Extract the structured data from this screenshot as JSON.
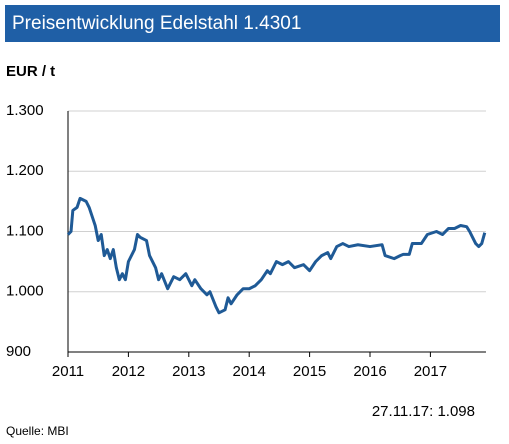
{
  "chart_data": {
    "type": "line",
    "title": "Preisentwicklung Edelstahl 1.4301",
    "y_label": "EUR / t",
    "annotation": "27.11.17:  1.098",
    "source": "Quelle: MBI",
    "xlim": [
      2011,
      2017.92
    ],
    "xticks": [
      2011,
      2012,
      2013,
      2014,
      2015,
      2016,
      2017
    ],
    "ylim": [
      900,
      1300
    ],
    "yticks": [
      900,
      {
        "value": 1000,
        "label": "1.000"
      },
      {
        "value": 1100,
        "label": "1.100"
      },
      {
        "value": 1200,
        "label": "1.200"
      },
      {
        "value": 1300,
        "label": "1.300"
      }
    ],
    "grid": true,
    "series": [
      {
        "color": "#1f5a96",
        "x": [
          2011.0,
          2011.05,
          2011.08,
          2011.15,
          2011.2,
          2011.3,
          2011.35,
          2011.4,
          2011.45,
          2011.5,
          2011.55,
          2011.6,
          2011.65,
          2011.7,
          2011.75,
          2011.8,
          2011.85,
          2011.9,
          2011.95,
          2012.0,
          2012.1,
          2012.15,
          2012.2,
          2012.3,
          2012.35,
          2012.45,
          2012.5,
          2012.55,
          2012.65,
          2012.75,
          2012.85,
          2012.95,
          2013.05,
          2013.1,
          2013.2,
          2013.3,
          2013.35,
          2013.45,
          2013.5,
          2013.6,
          2013.65,
          2013.7,
          2013.8,
          2013.9,
          2014.0,
          2014.1,
          2014.2,
          2014.3,
          2014.35,
          2014.45,
          2014.55,
          2014.65,
          2014.75,
          2014.9,
          2015.0,
          2015.1,
          2015.2,
          2015.3,
          2015.35,
          2015.45,
          2015.55,
          2015.65,
          2015.8,
          2016.0,
          2016.2,
          2016.25,
          2016.4,
          2016.5,
          2016.55,
          2016.65,
          2016.7,
          2016.85,
          2016.95,
          2017.1,
          2017.2,
          2017.3,
          2017.4,
          2017.5,
          2017.6,
          2017.65,
          2017.7,
          2017.75,
          2017.8,
          2017.85,
          2017.9
        ],
        "values": [
          1095,
          1100,
          1135,
          1140,
          1155,
          1150,
          1140,
          1125,
          1110,
          1085,
          1095,
          1060,
          1070,
          1055,
          1070,
          1040,
          1020,
          1030,
          1020,
          1050,
          1070,
          1095,
          1090,
          1085,
          1060,
          1040,
          1020,
          1030,
          1005,
          1025,
          1020,
          1030,
          1010,
          1020,
          1005,
          995,
          1000,
          975,
          965,
          970,
          990,
          980,
          995,
          1005,
          1005,
          1010,
          1020,
          1035,
          1030,
          1050,
          1045,
          1050,
          1040,
          1045,
          1035,
          1050,
          1060,
          1065,
          1055,
          1075,
          1080,
          1075,
          1078,
          1075,
          1078,
          1060,
          1055,
          1060,
          1062,
          1062,
          1080,
          1080,
          1095,
          1100,
          1095,
          1105,
          1105,
          1110,
          1108,
          1100,
          1090,
          1080,
          1075,
          1080,
          1098
        ]
      }
    ]
  }
}
